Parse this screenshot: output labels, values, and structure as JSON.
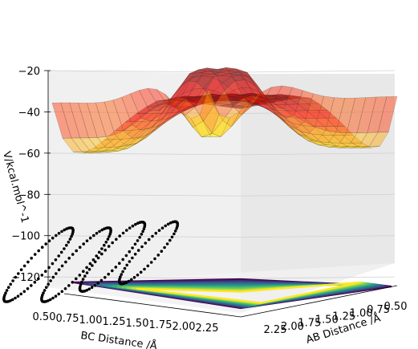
{
  "chart_data": {
    "type": "surface3d",
    "title": "",
    "zlabel": "V/kcal.mol^-1",
    "xlabel": "AB Distance /Å",
    "ylabel": "BC Distance /Å",
    "z_ticks": [
      "−20",
      "−40",
      "−60",
      "−80",
      "−100",
      "−120"
    ],
    "bc_ticks": [
      "0.50",
      "0.75",
      "1.00",
      "1.25",
      "1.50",
      "1.75",
      "2.00",
      "2.25"
    ],
    "ab_ticks": [
      "2.25",
      "2.00",
      "1.75",
      "1.50",
      "1.25",
      "1.00",
      "0.75",
      "0.50"
    ],
    "zlim": [
      -125,
      -20
    ],
    "colormap": "jet",
    "contour_colormap": "viridis",
    "trajectory_color": "#000000",
    "grid": true
  }
}
